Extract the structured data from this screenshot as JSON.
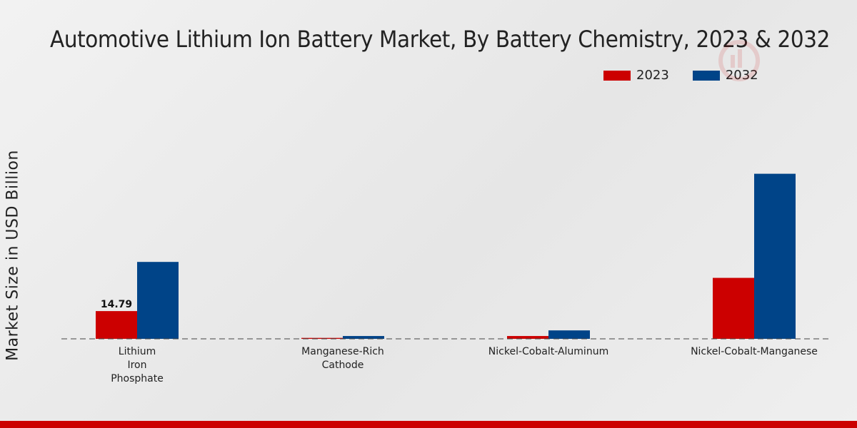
{
  "chart_data": {
    "type": "bar",
    "title": "Automotive Lithium Ion Battery Market, By Battery Chemistry, 2023 & 2032",
    "xlabel": "",
    "ylabel": "Market Size in USD Billion",
    "categories": [
      [
        "Lithium",
        "Iron",
        "Phosphate"
      ],
      [
        "Manganese-Rich",
        "Cathode"
      ],
      [
        "Nickel-Cobalt-Aluminum"
      ],
      [
        "Nickel-Cobalt-Manganese"
      ]
    ],
    "series": [
      {
        "name": "2023",
        "color": "#cc0000",
        "values": [
          14.79,
          0.5,
          1.5,
          32.5
        ]
      },
      {
        "name": "2032",
        "color": "#004488",
        "values": [
          41.0,
          1.5,
          4.5,
          88.0
        ]
      }
    ],
    "data_labels": [
      {
        "series": 0,
        "index": 0,
        "text": "14.79"
      }
    ],
    "ylim": [
      0,
      135
    ],
    "legend_position": "top-right",
    "grid": false
  }
}
